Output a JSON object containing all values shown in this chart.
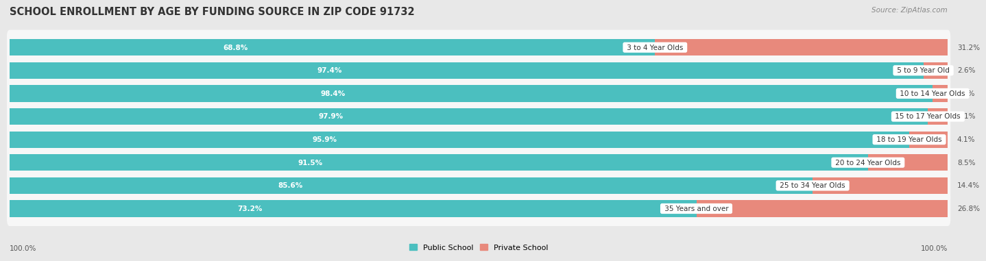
{
  "title": "SCHOOL ENROLLMENT BY AGE BY FUNDING SOURCE IN ZIP CODE 91732",
  "source": "Source: ZipAtlas.com",
  "categories": [
    "3 to 4 Year Olds",
    "5 to 9 Year Old",
    "10 to 14 Year Olds",
    "15 to 17 Year Olds",
    "18 to 19 Year Olds",
    "20 to 24 Year Olds",
    "25 to 34 Year Olds",
    "35 Years and over"
  ],
  "public_values": [
    68.8,
    97.4,
    98.4,
    97.9,
    95.9,
    91.5,
    85.6,
    73.2
  ],
  "private_values": [
    31.2,
    2.6,
    1.6,
    2.1,
    4.1,
    8.5,
    14.4,
    26.8
  ],
  "public_color": "#4BBFBF",
  "private_color": "#E8897C",
  "public_label": "Public School",
  "private_label": "Private School",
  "bg_color": "#e8e8e8",
  "bar_bg_color": "#f7f7f7",
  "label_color_public": "#ffffff",
  "axis_label_left": "100.0%",
  "axis_label_right": "100.0%",
  "title_fontsize": 10.5,
  "source_fontsize": 7.5,
  "bar_label_fontsize": 7.5,
  "category_fontsize": 7.5,
  "axis_fontsize": 7.5,
  "legend_fontsize": 8
}
